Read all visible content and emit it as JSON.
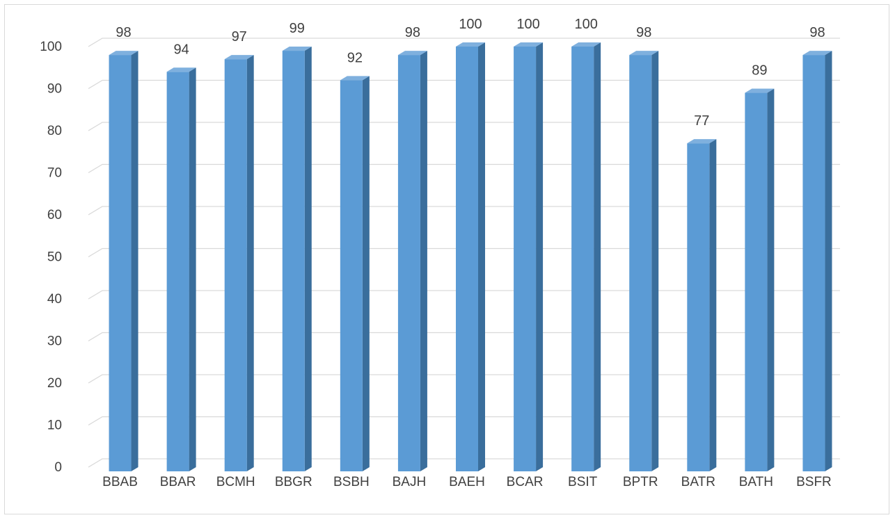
{
  "chart_data": {
    "type": "bar",
    "style": "3d-column",
    "categories": [
      "BBAB",
      "BBAR",
      "BCMH",
      "BBGR",
      "BSBH",
      "BAJH",
      "BAEH",
      "BCAR",
      "BSIT",
      "BPTR",
      "BATR",
      "BATH",
      "BSFR"
    ],
    "values": [
      98,
      94,
      97,
      99,
      92,
      98,
      100,
      100,
      100,
      98,
      77,
      89,
      98
    ],
    "title": "",
    "xlabel": "",
    "ylabel": "",
    "ylim": [
      0,
      100
    ],
    "yticks": [
      0,
      10,
      20,
      30,
      40,
      50,
      60,
      70,
      80,
      90,
      100
    ],
    "grid": true,
    "legend": "none",
    "data_labels": true,
    "colors": {
      "bar_front": "#5b9bd5",
      "bar_side": "#3a6e9c",
      "bar_top": "#7fb0de",
      "grid": "#d9d9d9",
      "text": "#404040"
    }
  }
}
